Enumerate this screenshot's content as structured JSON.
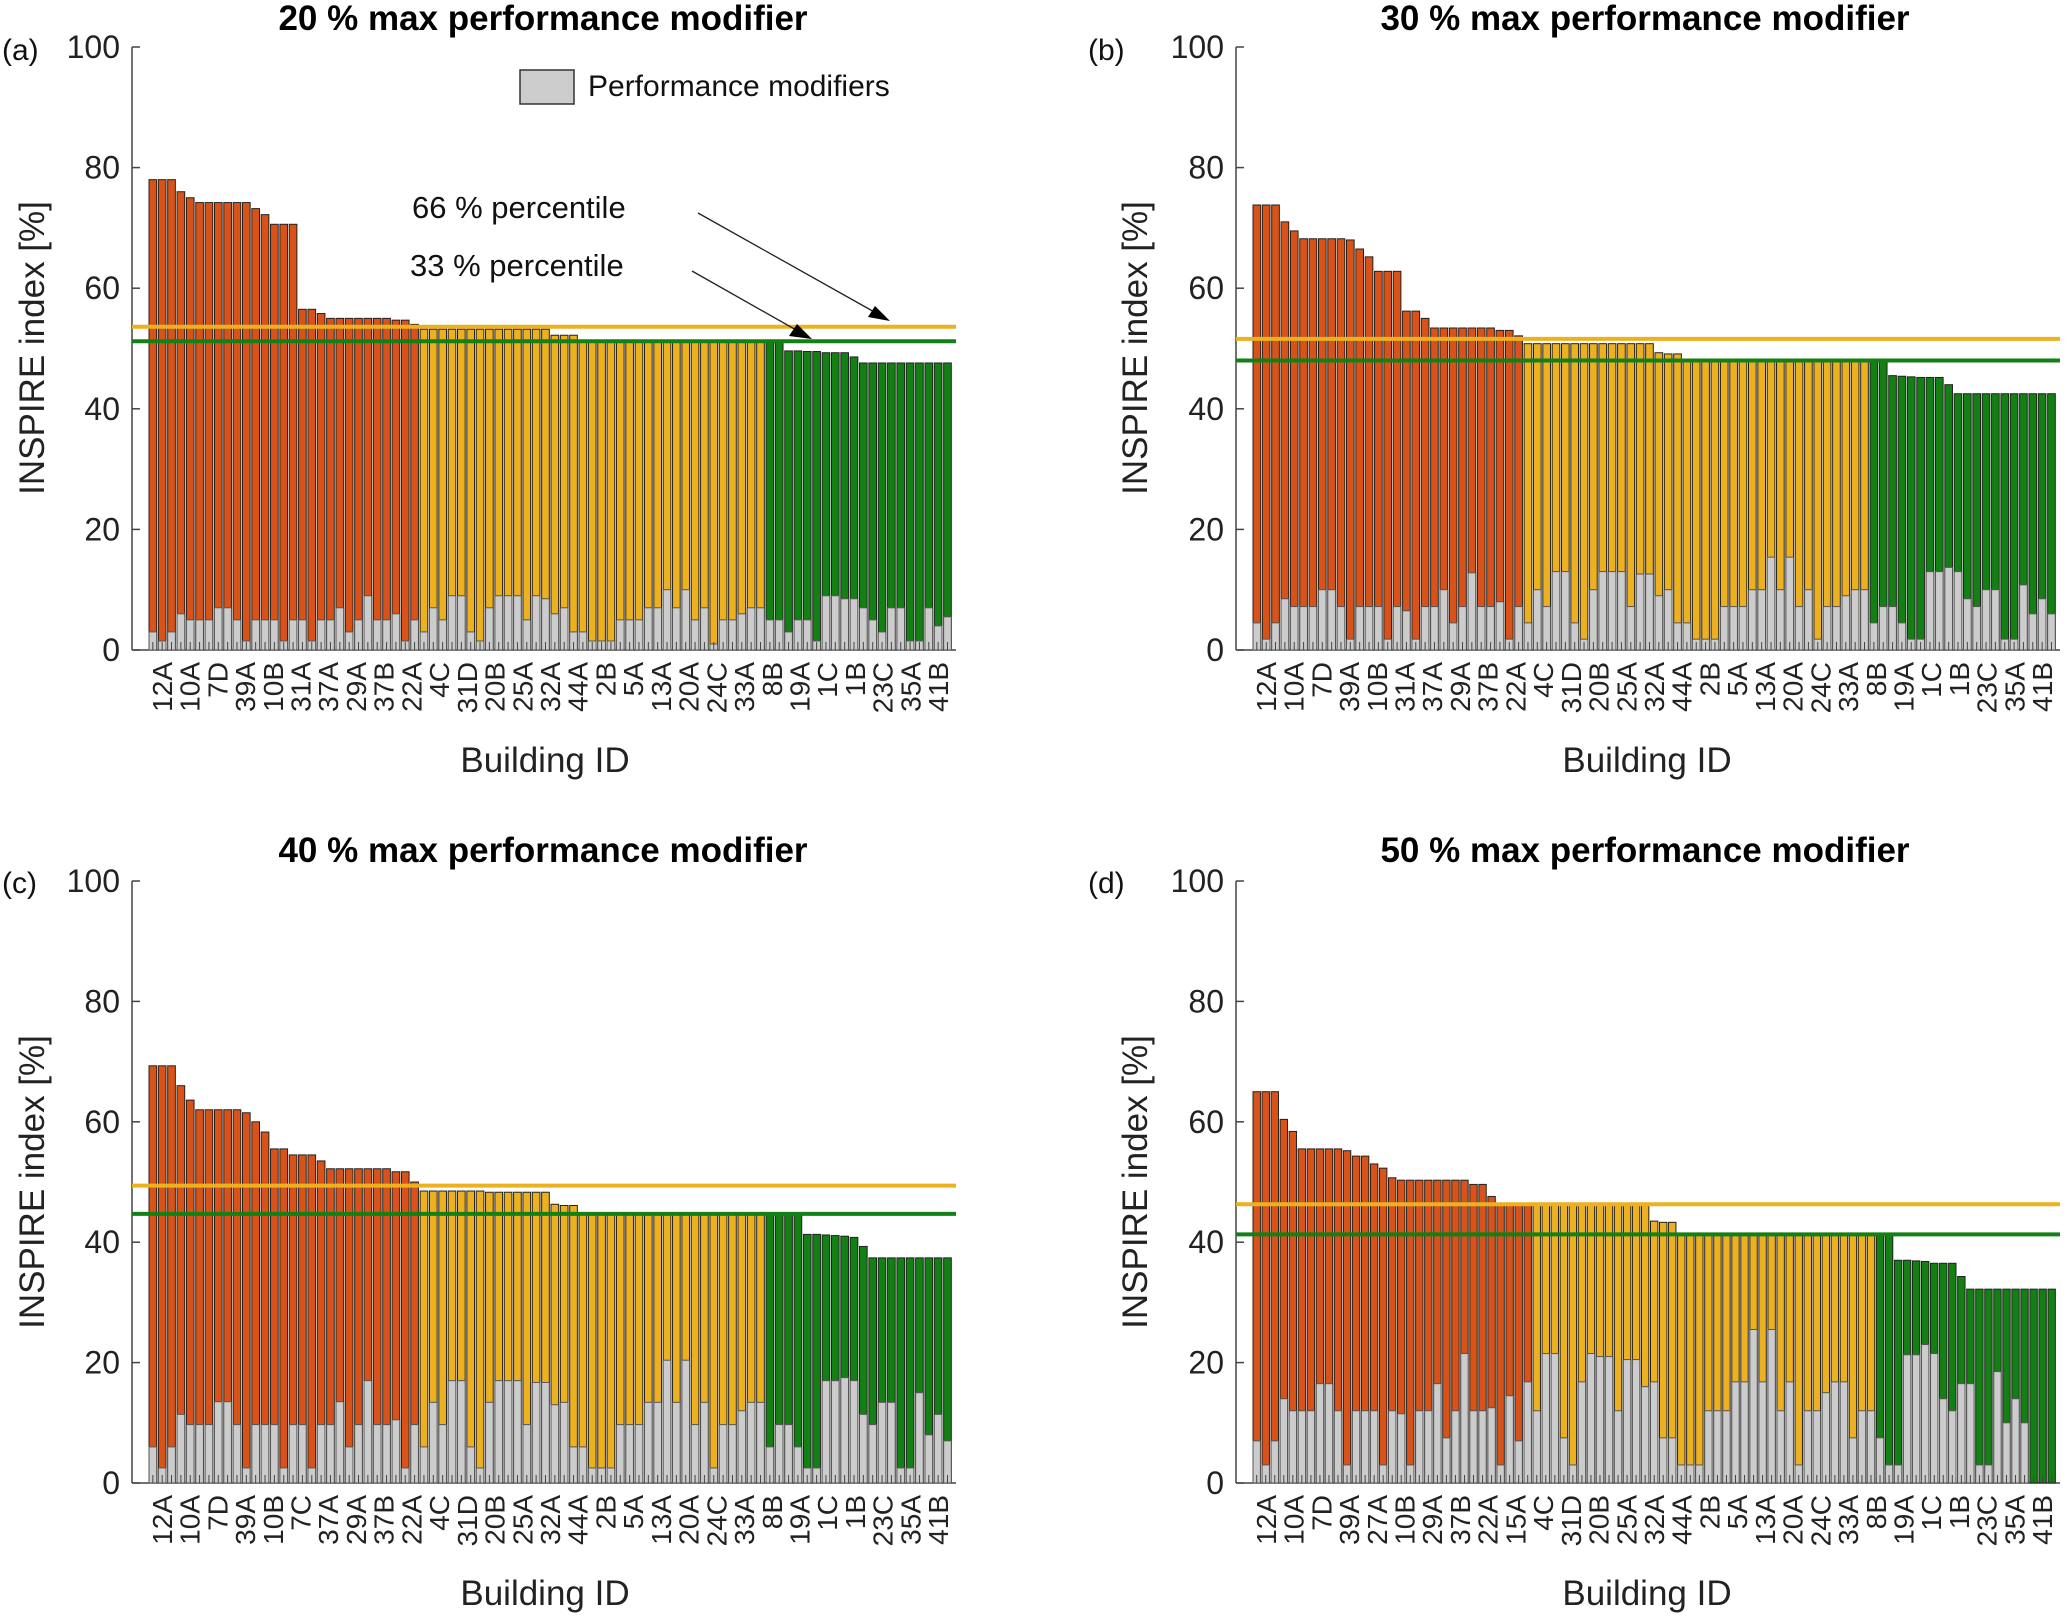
{
  "chart_data": [
    {
      "type": "bar",
      "panel_tag": "(a)",
      "title": "20 % max performance modifier",
      "xlabel": "Building ID",
      "ylabel": "INSPIRE index [%]",
      "ylim": [
        0,
        100
      ],
      "yticks": [
        "0",
        "20",
        "40",
        "60",
        "80",
        "100"
      ],
      "tick_labels": [
        "12A",
        "10A",
        "7D",
        "39A",
        "10B",
        "31A",
        "37A",
        "29A",
        "37B",
        "22A",
        "4C",
        "31D",
        "20B",
        "25A",
        "32A",
        "44A",
        "2B",
        "5A",
        "13A",
        "20A",
        "24C",
        "33A",
        "8B",
        "19A",
        "1C",
        "1B",
        "23C",
        "35A",
        "41B"
      ],
      "legend": {
        "label": "Performance modifiers",
        "position": "top-right"
      },
      "thresholds": {
        "p66": 53.6,
        "p33": 51.2,
        "p66_label": "66 % percentile",
        "p33_label": "33 % percentile"
      },
      "series": [
        {
          "name": "INSPIRE index",
          "values": [
            78,
            78,
            78,
            76,
            75,
            74.2,
            74.2,
            74.2,
            74.2,
            74.2,
            74.2,
            73.2,
            72.2,
            70.6,
            70.6,
            70.6,
            56.5,
            56.5,
            55.8,
            55,
            55,
            55,
            55,
            55,
            55,
            55,
            54.7,
            54.7,
            54,
            53.2,
            53.2,
            53.2,
            53.2,
            53.2,
            53.2,
            53.2,
            53.2,
            53.2,
            53.2,
            53.2,
            53.2,
            53.2,
            53.2,
            52.2,
            52.2,
            52.2,
            51.2,
            51.2,
            51.2,
            51.2,
            51.2,
            51.2,
            51.2,
            51.2,
            51.2,
            51.2,
            51.2,
            51.2,
            51.2,
            51.2,
            51.2,
            51.2,
            51.2,
            51.2,
            51.2,
            51.2,
            51.2,
            51.2,
            49.6,
            49.6,
            49.5,
            49.5,
            49.3,
            49.3,
            49.3,
            48.6,
            47.6,
            47.6,
            47.6,
            47.6,
            47.6,
            47.6,
            47.6,
            47.6,
            47.6,
            47.6
          ]
        },
        {
          "name": "Performance modifiers",
          "values": [
            3,
            1.5,
            3,
            6,
            5,
            5,
            5,
            7,
            7,
            5,
            1.5,
            5,
            5,
            5,
            1.5,
            5,
            5,
            1.5,
            5,
            5,
            7,
            3,
            5,
            9,
            5,
            5,
            6,
            1.5,
            5,
            3,
            7,
            5,
            9,
            9,
            3,
            1.5,
            7,
            9,
            9,
            9,
            5,
            9,
            8.5,
            6,
            7,
            3,
            3,
            1.5,
            1.5,
            1.5,
            5,
            5,
            5,
            7,
            7,
            10,
            7,
            10,
            5,
            7,
            1,
            5,
            5,
            6,
            7,
            7,
            5,
            5,
            3,
            5,
            5,
            1.5,
            9,
            9,
            8.5,
            8.5,
            7,
            5,
            3,
            7,
            7,
            1.5,
            1.5,
            7,
            4,
            5.5
          ]
        }
      ],
      "colors": {
        "high": "#d95319",
        "mid": "#edb120",
        "low": "#138013",
        "modifier": "#cccccc"
      }
    },
    {
      "type": "bar",
      "panel_tag": "(b)",
      "title": "30 % max performance modifier",
      "xlabel": "Building ID",
      "ylabel": "INSPIRE index [%]",
      "ylim": [
        0,
        100
      ],
      "yticks": [
        "0",
        "20",
        "40",
        "60",
        "80",
        "100"
      ],
      "tick_labels": [
        "12A",
        "10A",
        "7D",
        "39A",
        "10B",
        "31A",
        "37A",
        "29A",
        "37B",
        "22A",
        "4C",
        "31D",
        "20B",
        "25A",
        "32A",
        "44A",
        "2B",
        "5A",
        "13A",
        "20A",
        "24C",
        "33A",
        "8B",
        "19A",
        "1C",
        "1B",
        "23C",
        "35A",
        "41B"
      ],
      "thresholds": {
        "p66": 51.6,
        "p33": 48
      },
      "series": [
        {
          "name": "INSPIRE index",
          "values": [
            73.8,
            73.8,
            73.8,
            71,
            69.5,
            68.2,
            68.2,
            68.2,
            68.2,
            68.2,
            68,
            66.5,
            65.2,
            62.8,
            62.8,
            62.8,
            56.2,
            56.2,
            55,
            53.4,
            53.4,
            53.4,
            53.4,
            53.4,
            53.4,
            53.4,
            53,
            53,
            52.1,
            50.8,
            50.8,
            50.8,
            50.8,
            50.8,
            50.8,
            50.8,
            50.8,
            50.8,
            50.8,
            50.8,
            50.8,
            50.8,
            50.8,
            49.3,
            49.1,
            49.1,
            48,
            48,
            48,
            48,
            48,
            48,
            48,
            48,
            48,
            48,
            48,
            48,
            48,
            48,
            48,
            48,
            48,
            48,
            48,
            48,
            48,
            48,
            45.5,
            45.4,
            45.3,
            45.2,
            45.2,
            45.2,
            44,
            42.5,
            42.5,
            42.5,
            42.5,
            42.5,
            42.5,
            42.5,
            42.5,
            42.5,
            42.5,
            42.5
          ]
        },
        {
          "name": "Performance modifiers",
          "values": [
            4.5,
            1.8,
            4.5,
            8.5,
            7.2,
            7.2,
            7.2,
            10,
            10,
            7.2,
            1.8,
            7.2,
            7.2,
            7.2,
            1.8,
            7.2,
            6.5,
            1.8,
            7.2,
            7.2,
            10,
            4.5,
            7.2,
            12.8,
            7.2,
            7.2,
            8,
            1.8,
            7.2,
            4.5,
            10,
            7.2,
            13,
            13,
            4.5,
            1.8,
            10,
            13,
            13,
            13,
            7.2,
            12.6,
            12.6,
            9,
            10,
            4.5,
            4.5,
            1.8,
            1.8,
            1.8,
            7.2,
            7.2,
            7.2,
            10,
            10,
            15.4,
            10,
            15.4,
            7.2,
            10,
            1.8,
            7.2,
            7.2,
            9,
            10,
            10,
            4.5,
            7.2,
            7.2,
            4.5,
            1.8,
            1.8,
            13,
            13,
            13.7,
            13,
            8.5,
            7.2,
            10,
            10,
            1.8,
            1.8,
            10.8,
            6,
            8.5,
            6
          ]
        }
      ]
    },
    {
      "type": "bar",
      "panel_tag": "(c)",
      "title": "40 % max performance modifier",
      "xlabel": "Building ID",
      "ylabel": "INSPIRE index [%]",
      "ylim": [
        0,
        100
      ],
      "yticks": [
        "0",
        "20",
        "40",
        "60",
        "80",
        "100"
      ],
      "tick_labels": [
        "12A",
        "10A",
        "7D",
        "39A",
        "10B",
        "7C",
        "37A",
        "29A",
        "37B",
        "22A",
        "4C",
        "31D",
        "20B",
        "25A",
        "32A",
        "44A",
        "2B",
        "5A",
        "13A",
        "20A",
        "24C",
        "33A",
        "8B",
        "19A",
        "1C",
        "1B",
        "23C",
        "35A",
        "41B"
      ],
      "thresholds": {
        "p66": 49.4,
        "p33": 44.7
      },
      "series": [
        {
          "name": "INSPIRE index",
          "values": [
            69.3,
            69.3,
            69.3,
            66,
            63.6,
            62,
            62,
            62,
            62,
            62,
            61.5,
            60,
            58.3,
            55.5,
            55.5,
            54.5,
            54.5,
            54.5,
            53.5,
            52.2,
            52.2,
            52.2,
            52.2,
            52.2,
            52.2,
            52.2,
            51.7,
            51.7,
            50,
            48.5,
            48.5,
            48.5,
            48.5,
            48.5,
            48.5,
            48.5,
            48.3,
            48.3,
            48.3,
            48.3,
            48.3,
            48.3,
            48.3,
            46.3,
            46.1,
            46.1,
            44.7,
            44.7,
            44.7,
            44.7,
            44.7,
            44.7,
            44.7,
            44.7,
            44.7,
            44.7,
            44.7,
            44.7,
            44.7,
            44.7,
            44.7,
            44.7,
            44.7,
            44.7,
            44.7,
            44.7,
            44.7,
            44.7,
            44.7,
            44.7,
            41.3,
            41.3,
            41.2,
            41.1,
            41,
            40.8,
            39.3,
            37.4,
            37.4,
            37.4,
            37.4,
            37.4,
            37.4,
            37.4,
            37.4,
            37.4
          ]
        },
        {
          "name": "Performance modifiers",
          "values": [
            6,
            2.5,
            6,
            11.4,
            9.7,
            9.7,
            9.7,
            13.5,
            13.5,
            9.7,
            2.5,
            9.7,
            9.7,
            9.7,
            2.5,
            9.7,
            9.7,
            2.5,
            9.7,
            9.7,
            13.5,
            6,
            9.7,
            17,
            9.7,
            9.7,
            10.5,
            2.5,
            9.7,
            6,
            13.4,
            9.7,
            17,
            17,
            6,
            2.5,
            13.4,
            17,
            17,
            17,
            9.7,
            16.7,
            16.7,
            13,
            13.4,
            6,
            6,
            2.5,
            2.5,
            2.5,
            9.7,
            9.7,
            9.7,
            13.4,
            13.4,
            20.4,
            13.4,
            20.4,
            9.7,
            13.4,
            2.5,
            9.7,
            9.7,
            12,
            13.4,
            13.4,
            6,
            9.7,
            9.7,
            6,
            2.5,
            2.5,
            17,
            17,
            17.5,
            17,
            11.4,
            9.7,
            13.4,
            13.4,
            2.5,
            2.5,
            15,
            8,
            11.4,
            7
          ]
        }
      ]
    },
    {
      "type": "bar",
      "panel_tag": "(d)",
      "title": "50 % max performance modifier",
      "xlabel": "Building ID",
      "ylabel": "INSPIRE index [%]",
      "ylim": [
        0,
        100
      ],
      "yticks": [
        "0",
        "20",
        "40",
        "60",
        "80",
        "100"
      ],
      "tick_labels": [
        "12A",
        "10A",
        "7D",
        "39A",
        "27A",
        "10B",
        "29A",
        "37B",
        "22A",
        "15A",
        "4C",
        "31D",
        "20B",
        "25A",
        "32A",
        "44A",
        "2B",
        "5A",
        "13A",
        "20A",
        "24C",
        "33A",
        "8B",
        "19A",
        "1C",
        "1B",
        "23C",
        "35A",
        "41B"
      ],
      "thresholds": {
        "p66": 46.3,
        "p33": 41.3
      },
      "series": [
        {
          "name": "INSPIRE index",
          "values": [
            65,
            65,
            65,
            60.4,
            58.4,
            55.5,
            55.5,
            55.5,
            55.5,
            55.5,
            55.2,
            54.3,
            54.3,
            53,
            52.3,
            50.7,
            50.3,
            50.3,
            50.3,
            50.3,
            50.3,
            50.3,
            50.3,
            50.3,
            49.6,
            49.6,
            47.6,
            46.2,
            46.2,
            46.2,
            46.2,
            46.2,
            46.2,
            46.2,
            46.2,
            46.2,
            46.2,
            46.1,
            46.1,
            46.1,
            46.1,
            46.1,
            46.1,
            46.1,
            43.5,
            43.3,
            43.3,
            41.3,
            41.3,
            41.3,
            41.3,
            41.3,
            41.3,
            41.3,
            41.3,
            41.3,
            41.3,
            41.3,
            41.3,
            41.3,
            41.3,
            41.3,
            41.3,
            41.3,
            41.3,
            41.3,
            41.3,
            41.3,
            41.3,
            41.3,
            41.3,
            37,
            37,
            36.9,
            36.8,
            36.5,
            36.5,
            36.5,
            34.3,
            32.2,
            32.2,
            32.2,
            32.2,
            32.2,
            32.2,
            32.2,
            32.2,
            32.2,
            32.2
          ]
        },
        {
          "name": "Performance modifiers",
          "values": [
            7,
            3,
            7,
            14,
            12,
            12,
            12,
            16.5,
            16.5,
            12,
            3,
            12,
            12,
            12,
            3,
            12,
            11.5,
            3,
            12,
            12,
            16.5,
            7.5,
            12,
            21.5,
            12,
            12,
            12.5,
            3,
            14.5,
            7,
            16.8,
            12,
            21.5,
            21.5,
            7.5,
            3,
            16.8,
            21.5,
            21,
            21,
            12,
            20.5,
            20.5,
            16,
            16.8,
            7.5,
            7.5,
            3,
            3,
            3,
            12,
            12,
            12,
            16.8,
            16.8,
            25.5,
            16.8,
            25.5,
            12,
            16.8,
            3,
            12,
            12,
            15,
            16.8,
            16.8,
            7.5,
            12,
            12,
            7.5,
            3,
            3,
            21.3,
            21.3,
            23,
            21.5,
            14,
            12,
            16.5,
            16.5,
            3,
            3,
            18.5,
            10,
            14,
            10
          ]
        }
      ]
    }
  ],
  "figure": {
    "legend_label": "Performance modifiers",
    "annotation_66": "66 % percentile",
    "annotation_33": "33 % percentile"
  }
}
